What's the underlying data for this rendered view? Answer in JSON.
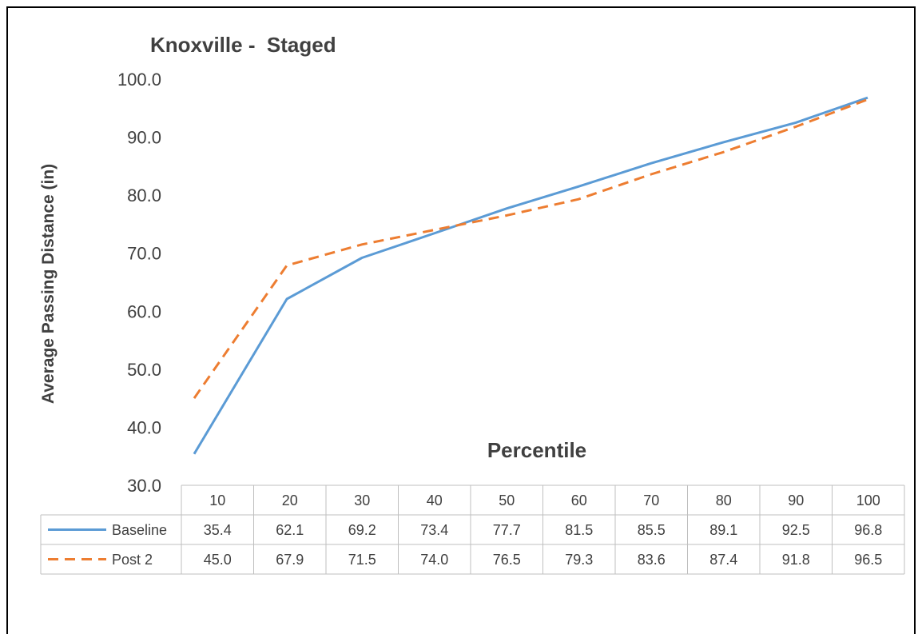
{
  "chart_data": {
    "type": "line",
    "title": "Knoxville -  Staged",
    "xlabel": "Percentile",
    "ylabel": "Average Passing Distance (in)",
    "categories": [
      10,
      20,
      30,
      40,
      50,
      60,
      70,
      80,
      90,
      100
    ],
    "series": [
      {
        "name": "Baseline",
        "values": [
          35.4,
          62.1,
          69.2,
          73.4,
          77.7,
          81.5,
          85.5,
          89.1,
          92.5,
          96.8
        ],
        "color": "#5B9BD5",
        "line_style": "solid"
      },
      {
        "name": "Post 2",
        "values": [
          45.0,
          67.9,
          71.5,
          74.0,
          76.5,
          79.3,
          83.6,
          87.4,
          91.8,
          96.5
        ],
        "color": "#ED7D31",
        "line_style": "dashed"
      }
    ],
    "ylim": [
      30,
      100
    ],
    "yticks": [
      100,
      90,
      80,
      70,
      60,
      50,
      40,
      30
    ],
    "grid": false,
    "legend": "bottom"
  }
}
